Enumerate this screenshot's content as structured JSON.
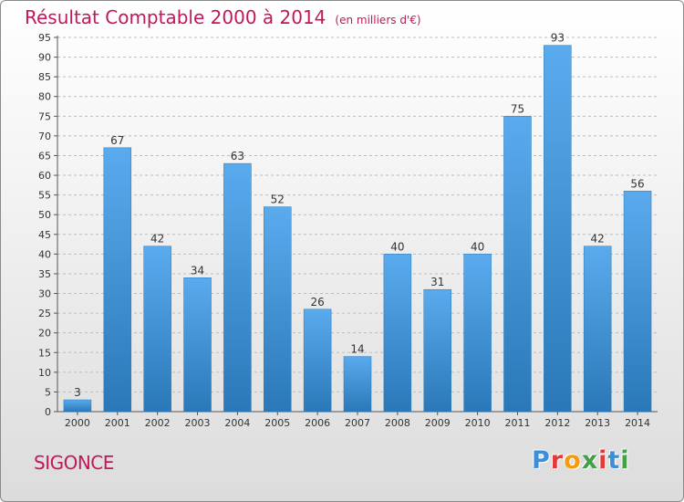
{
  "header": {
    "title": "Résultat Comptable 2000 à 2014",
    "subtitle": "(en milliers d'€)"
  },
  "footer": {
    "commune": "SIGONCE",
    "logo_text": "Proxiti"
  },
  "colors": {
    "title": "#c2185b",
    "bar_top": "#5aabee",
    "bar_bottom": "#2a78b8",
    "logo": [
      "#3a8fd8",
      "#e53935",
      "#f39c12",
      "#43a047",
      "#e53935",
      "#3a8fd8",
      "#43a047"
    ]
  },
  "chart_data": {
    "type": "bar",
    "categories": [
      "2000",
      "2001",
      "2002",
      "2003",
      "2004",
      "2005",
      "2006",
      "2007",
      "2008",
      "2009",
      "2010",
      "2011",
      "2012",
      "2013",
      "2014"
    ],
    "values": [
      3,
      67,
      42,
      34,
      63,
      52,
      26,
      14,
      40,
      31,
      40,
      75,
      93,
      42,
      56
    ],
    "title": "Résultat Comptable 2000 à 2014",
    "subtitle": "(en milliers d'€)",
    "ylim": [
      0,
      95
    ],
    "ytick_step": 5,
    "grid": true,
    "data_labels": true
  }
}
